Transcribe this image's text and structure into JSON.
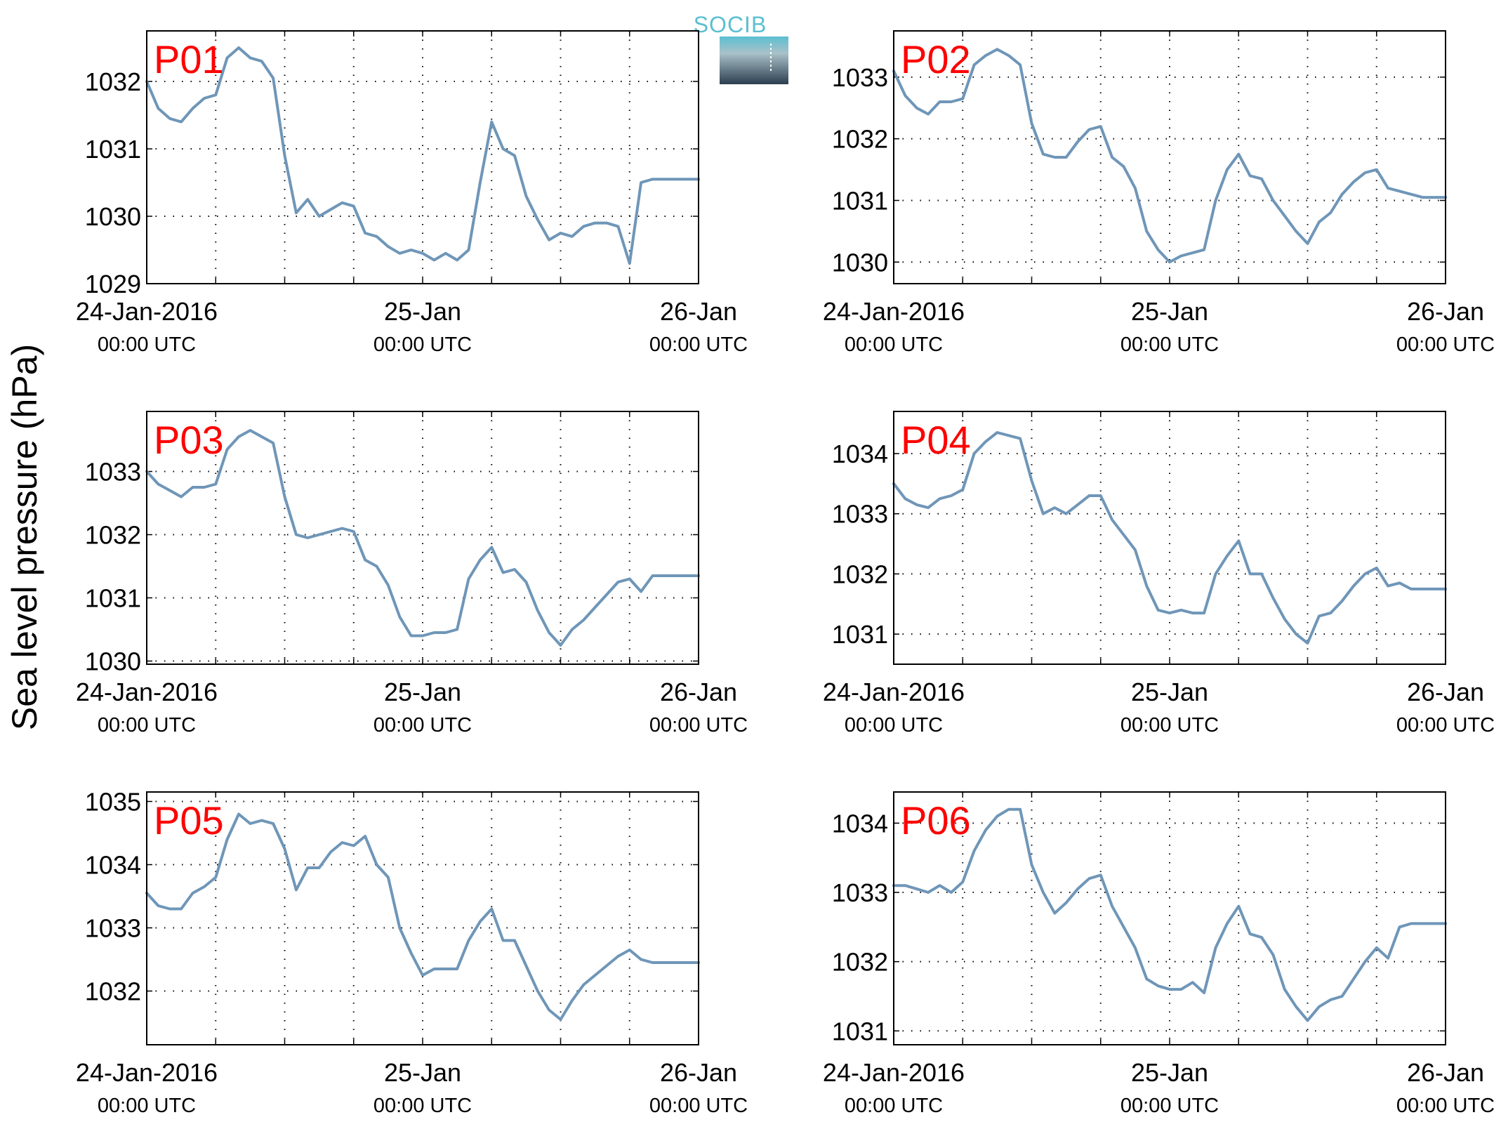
{
  "figure": {
    "ylabel": "Sea level pressure (hPa)",
    "logo_text": "SOCIB"
  },
  "colors": {
    "line": "#6f96b8",
    "panel_label": "#ff0000",
    "logo_top": "#5bbfd1",
    "logo_bottom": "#2c3e4e"
  },
  "chart_data": [
    {
      "type": "line",
      "panel": "P01",
      "ylim": [
        1029,
        1032.75
      ],
      "yticks": [
        1029,
        1030,
        1031,
        1032
      ],
      "xlim": [
        0,
        48
      ],
      "xticks": [
        {
          "x": 0,
          "label": "24-Jan-2016",
          "sub": "00:00 UTC"
        },
        {
          "x": 24,
          "label": "25-Jan",
          "sub": "00:00 UTC"
        },
        {
          "x": 48,
          "label": "26-Jan",
          "sub": "00:00 UTC"
        }
      ],
      "x": [
        0,
        1,
        2,
        3,
        4,
        5,
        6,
        7,
        8,
        9,
        10,
        11,
        12,
        13,
        14,
        15,
        16,
        17,
        18,
        19,
        20,
        21,
        22,
        23,
        24,
        25,
        26,
        27,
        28,
        29,
        30,
        31,
        32,
        33,
        34,
        35,
        36,
        37,
        38,
        39,
        40,
        41,
        42,
        43,
        44,
        45,
        46,
        47,
        48
      ],
      "y": [
        1032.0,
        1031.6,
        1031.45,
        1031.4,
        1031.6,
        1031.75,
        1031.8,
        1032.35,
        1032.5,
        1032.35,
        1032.3,
        1032.05,
        1030.9,
        1030.05,
        1030.25,
        1030.0,
        1030.1,
        1030.2,
        1030.15,
        1029.75,
        1029.7,
        1029.55,
        1029.45,
        1029.5,
        1029.45,
        1029.35,
        1029.45,
        1029.35,
        1029.5,
        1030.5,
        1031.4,
        1031.0,
        1030.9,
        1030.3,
        1029.95,
        1029.65,
        1029.75,
        1029.7,
        1029.85,
        1029.9,
        1029.9,
        1029.85,
        1029.3,
        1030.5,
        1030.55,
        1030.55,
        1030.55,
        1030.55,
        1030.55
      ]
    },
    {
      "type": "line",
      "panel": "P02",
      "ylim": [
        1029.65,
        1033.75
      ],
      "yticks": [
        1030,
        1031,
        1032,
        1033
      ],
      "xlim": [
        0,
        48
      ],
      "xticks": [
        {
          "x": 0,
          "label": "24-Jan-2016",
          "sub": "00:00 UTC"
        },
        {
          "x": 24,
          "label": "25-Jan",
          "sub": "00:00 UTC"
        },
        {
          "x": 48,
          "label": "26-Jan",
          "sub": "00:00 UTC"
        }
      ],
      "x": [
        0,
        1,
        2,
        3,
        4,
        5,
        6,
        7,
        8,
        9,
        10,
        11,
        12,
        13,
        14,
        15,
        16,
        17,
        18,
        19,
        20,
        21,
        22,
        23,
        24,
        25,
        26,
        27,
        28,
        29,
        30,
        31,
        32,
        33,
        34,
        35,
        36,
        37,
        38,
        39,
        40,
        41,
        42,
        43,
        44,
        45,
        46,
        47,
        48
      ],
      "y": [
        1033.1,
        1032.7,
        1032.5,
        1032.4,
        1032.6,
        1032.6,
        1032.65,
        1033.2,
        1033.35,
        1033.45,
        1033.35,
        1033.2,
        1032.25,
        1031.75,
        1031.7,
        1031.7,
        1031.95,
        1032.15,
        1032.2,
        1031.7,
        1031.55,
        1031.2,
        1030.5,
        1030.2,
        1030.0,
        1030.1,
        1030.15,
        1030.2,
        1031.0,
        1031.5,
        1031.75,
        1031.4,
        1031.35,
        1031.0,
        1030.75,
        1030.5,
        1030.3,
        1030.65,
        1030.8,
        1031.1,
        1031.3,
        1031.45,
        1031.5,
        1031.2,
        1031.15,
        1031.1,
        1031.05,
        1031.05,
        1031.05
      ]
    },
    {
      "type": "line",
      "panel": "P03",
      "ylim": [
        1029.95,
        1033.95
      ],
      "yticks": [
        1030,
        1031,
        1032,
        1033
      ],
      "xlim": [
        0,
        48
      ],
      "xticks": [
        {
          "x": 0,
          "label": "24-Jan-2016",
          "sub": "00:00 UTC"
        },
        {
          "x": 24,
          "label": "25-Jan",
          "sub": "00:00 UTC"
        },
        {
          "x": 48,
          "label": "26-Jan",
          "sub": "00:00 UTC"
        }
      ],
      "x": [
        0,
        1,
        2,
        3,
        4,
        5,
        6,
        7,
        8,
        9,
        10,
        11,
        12,
        13,
        14,
        15,
        16,
        17,
        18,
        19,
        20,
        21,
        22,
        23,
        24,
        25,
        26,
        27,
        28,
        29,
        30,
        31,
        32,
        33,
        34,
        35,
        36,
        37,
        38,
        39,
        40,
        41,
        42,
        43,
        44,
        45,
        46,
        47,
        48
      ],
      "y": [
        1033.0,
        1032.8,
        1032.7,
        1032.6,
        1032.75,
        1032.75,
        1032.8,
        1033.35,
        1033.55,
        1033.65,
        1033.55,
        1033.45,
        1032.6,
        1032.0,
        1031.95,
        1032.0,
        1032.05,
        1032.1,
        1032.05,
        1031.6,
        1031.5,
        1031.2,
        1030.7,
        1030.4,
        1030.4,
        1030.45,
        1030.45,
        1030.5,
        1031.3,
        1031.6,
        1031.8,
        1031.4,
        1031.45,
        1031.25,
        1030.8,
        1030.45,
        1030.25,
        1030.5,
        1030.65,
        1030.85,
        1031.05,
        1031.25,
        1031.3,
        1031.1,
        1031.35,
        1031.35,
        1031.35,
        1031.35,
        1031.35
      ]
    },
    {
      "type": "line",
      "panel": "P04",
      "ylim": [
        1030.5,
        1034.7
      ],
      "yticks": [
        1031,
        1032,
        1033,
        1034
      ],
      "xlim": [
        0,
        48
      ],
      "xticks": [
        {
          "x": 0,
          "label": "24-Jan-2016",
          "sub": "00:00 UTC"
        },
        {
          "x": 24,
          "label": "25-Jan",
          "sub": "00:00 UTC"
        },
        {
          "x": 48,
          "label": "26-Jan",
          "sub": "00:00 UTC"
        }
      ],
      "x": [
        0,
        1,
        2,
        3,
        4,
        5,
        6,
        7,
        8,
        9,
        10,
        11,
        12,
        13,
        14,
        15,
        16,
        17,
        18,
        19,
        20,
        21,
        22,
        23,
        24,
        25,
        26,
        27,
        28,
        29,
        30,
        31,
        32,
        33,
        34,
        35,
        36,
        37,
        38,
        39,
        40,
        41,
        42,
        43,
        44,
        45,
        46,
        47,
        48
      ],
      "y": [
        1033.5,
        1033.25,
        1033.15,
        1033.1,
        1033.25,
        1033.3,
        1033.4,
        1034.0,
        1034.2,
        1034.35,
        1034.3,
        1034.25,
        1033.55,
        1033.0,
        1033.1,
        1033.0,
        1033.15,
        1033.3,
        1033.3,
        1032.9,
        1032.65,
        1032.4,
        1031.8,
        1031.4,
        1031.35,
        1031.4,
        1031.35,
        1031.35,
        1032.0,
        1032.3,
        1032.55,
        1032.0,
        1032.0,
        1031.6,
        1031.25,
        1031.0,
        1030.85,
        1031.3,
        1031.35,
        1031.55,
        1031.8,
        1032.0,
        1032.1,
        1031.8,
        1031.85,
        1031.75,
        1031.75,
        1031.75,
        1031.75
      ]
    },
    {
      "type": "line",
      "panel": "P05",
      "ylim": [
        1031.15,
        1035.15
      ],
      "yticks": [
        1032,
        1033,
        1034,
        1035
      ],
      "xlim": [
        0,
        48
      ],
      "xticks": [
        {
          "x": 0,
          "label": "24-Jan-2016",
          "sub": "00:00 UTC"
        },
        {
          "x": 24,
          "label": "25-Jan",
          "sub": "00:00 UTC"
        },
        {
          "x": 48,
          "label": "26-Jan",
          "sub": "00:00 UTC"
        }
      ],
      "x": [
        0,
        1,
        2,
        3,
        4,
        5,
        6,
        7,
        8,
        9,
        10,
        11,
        12,
        13,
        14,
        15,
        16,
        17,
        18,
        19,
        20,
        21,
        22,
        23,
        24,
        25,
        26,
        27,
        28,
        29,
        30,
        31,
        32,
        33,
        34,
        35,
        36,
        37,
        38,
        39,
        40,
        41,
        42,
        43,
        44,
        45,
        46,
        47,
        48
      ],
      "y": [
        1033.55,
        1033.35,
        1033.3,
        1033.3,
        1033.55,
        1033.65,
        1033.8,
        1034.4,
        1034.8,
        1034.65,
        1034.7,
        1034.65,
        1034.25,
        1033.6,
        1033.95,
        1033.95,
        1034.2,
        1034.35,
        1034.3,
        1034.45,
        1034.0,
        1033.8,
        1033.0,
        1032.6,
        1032.25,
        1032.35,
        1032.35,
        1032.35,
        1032.8,
        1033.1,
        1033.3,
        1032.8,
        1032.8,
        1032.4,
        1032.0,
        1031.7,
        1031.55,
        1031.85,
        1032.1,
        1032.25,
        1032.4,
        1032.55,
        1032.65,
        1032.5,
        1032.45,
        1032.45,
        1032.45,
        1032.45,
        1032.45
      ]
    },
    {
      "type": "line",
      "panel": "P06",
      "ylim": [
        1030.8,
        1034.45
      ],
      "yticks": [
        1031,
        1032,
        1033,
        1034
      ],
      "xlim": [
        0,
        48
      ],
      "xticks": [
        {
          "x": 0,
          "label": "24-Jan-2016",
          "sub": "00:00 UTC"
        },
        {
          "x": 24,
          "label": "25-Jan",
          "sub": "00:00 UTC"
        },
        {
          "x": 48,
          "label": "26-Jan",
          "sub": "00:00 UTC"
        }
      ],
      "x": [
        0,
        1,
        2,
        3,
        4,
        5,
        6,
        7,
        8,
        9,
        10,
        11,
        12,
        13,
        14,
        15,
        16,
        17,
        18,
        19,
        20,
        21,
        22,
        23,
        24,
        25,
        26,
        27,
        28,
        29,
        30,
        31,
        32,
        33,
        34,
        35,
        36,
        37,
        38,
        39,
        40,
        41,
        42,
        43,
        44,
        45,
        46,
        47,
        48
      ],
      "y": [
        1033.1,
        1033.1,
        1033.05,
        1033.0,
        1033.1,
        1033.0,
        1033.15,
        1033.6,
        1033.9,
        1034.1,
        1034.2,
        1034.2,
        1033.4,
        1033.0,
        1032.7,
        1032.85,
        1033.05,
        1033.2,
        1033.25,
        1032.8,
        1032.5,
        1032.2,
        1031.75,
        1031.65,
        1031.6,
        1031.6,
        1031.7,
        1031.55,
        1032.2,
        1032.55,
        1032.8,
        1032.4,
        1032.35,
        1032.1,
        1031.6,
        1031.35,
        1031.15,
        1031.35,
        1031.45,
        1031.5,
        1031.75,
        1032.0,
        1032.2,
        1032.05,
        1032.5,
        1032.55,
        1032.55,
        1032.55,
        1032.55
      ]
    }
  ]
}
